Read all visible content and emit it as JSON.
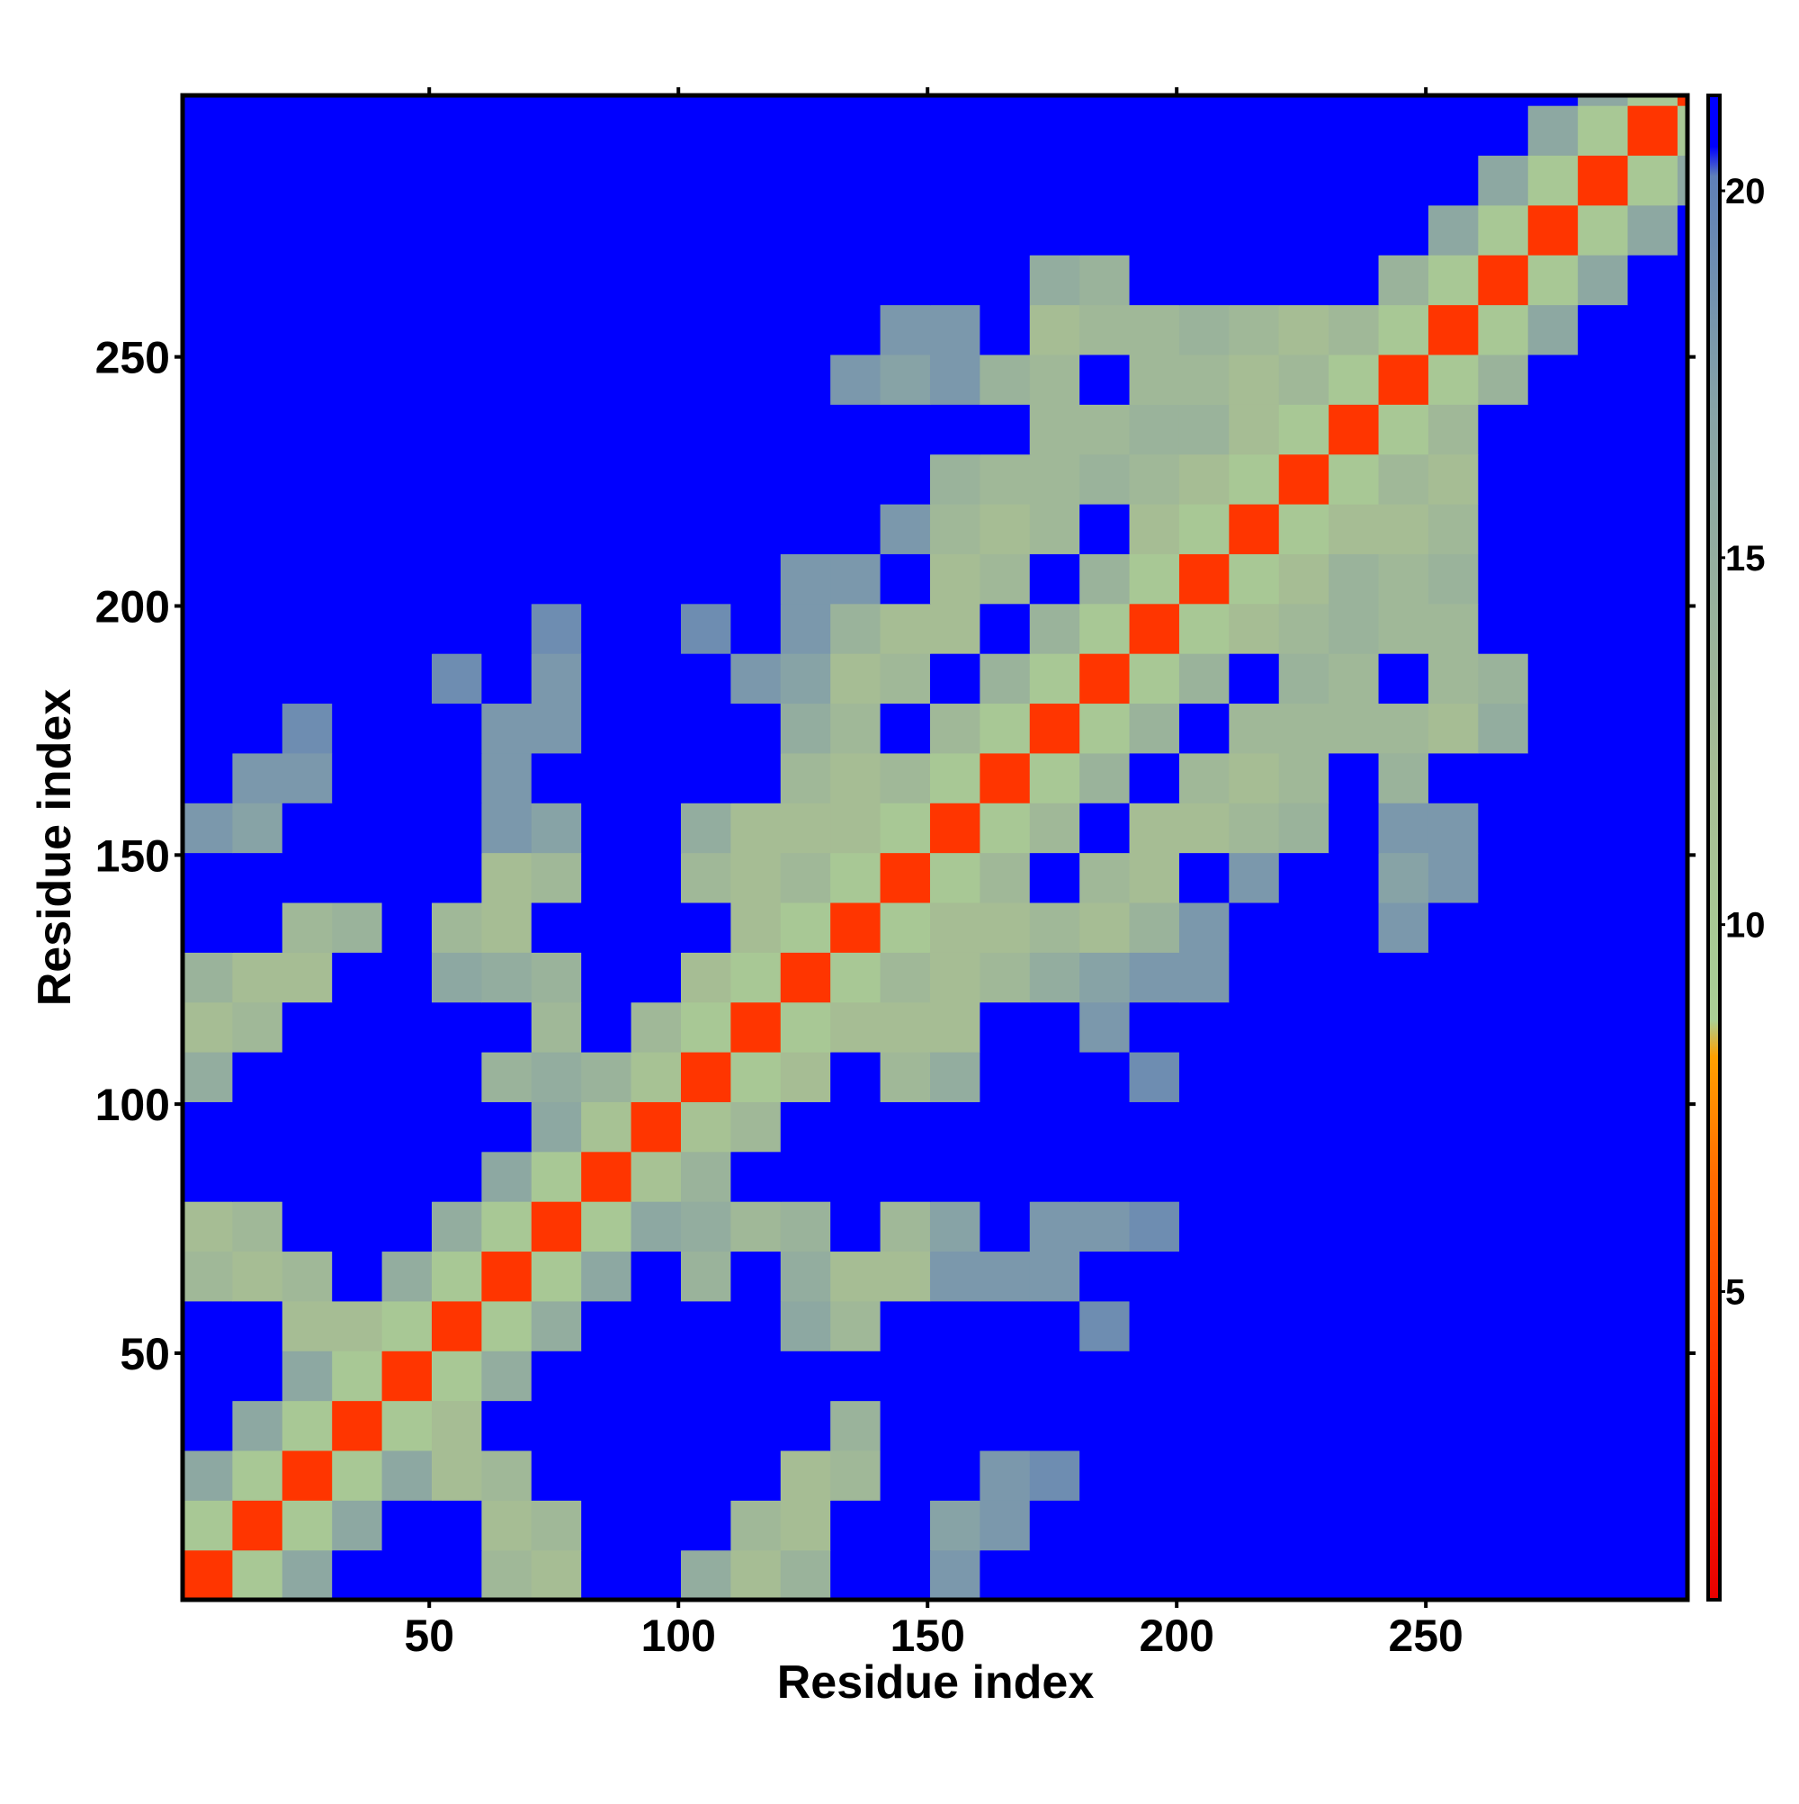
{
  "chart_data": {
    "type": "heatmap",
    "x_label": "Residue index",
    "y_label": "Residue index",
    "xlim": [
      0.5,
      302.5
    ],
    "ylim": [
      0.5,
      302.5
    ],
    "xticks": [
      50,
      100,
      150,
      200,
      250
    ],
    "yticks": [
      50,
      100,
      150,
      200,
      250
    ],
    "x_edges": [
      0.5,
      10.5,
      20.5,
      30.5,
      40.5,
      50.5,
      60.5,
      70.5,
      80.5,
      90.5,
      100.5,
      110.5,
      120.5,
      130.5,
      140.5,
      150.5,
      160.5,
      170.5,
      180.5,
      190.5,
      200.5,
      210.5,
      220.5,
      230.5,
      240.5,
      250.5,
      260.5,
      270.5,
      280.5,
      290.5,
      300.5,
      302.5
    ],
    "y_edges": [
      0.5,
      10.5,
      20.5,
      30.5,
      40.5,
      50.5,
      60.5,
      70.5,
      80.5,
      90.5,
      100.5,
      110.5,
      120.5,
      130.5,
      140.5,
      150.5,
      160.5,
      170.5,
      180.5,
      190.5,
      200.5,
      210.5,
      220.5,
      230.5,
      240.5,
      250.5,
      260.5,
      270.5,
      280.5,
      290.5,
      300.5,
      302.5
    ],
    "zlim": [
      0.8,
      21.3
    ],
    "zticks": [
      5,
      10,
      15,
      20
    ],
    "colorscale": [
      [
        0.8,
        "#e80000"
      ],
      [
        3.5,
        "#ff2a00"
      ],
      [
        6.5,
        "#ff6a00"
      ],
      [
        8.2,
        "#ffa000"
      ],
      [
        8.7,
        "#a9cf95"
      ],
      [
        12,
        "#a6bd94"
      ],
      [
        17,
        "#87a3a6"
      ],
      [
        20.2,
        "#5f80b8"
      ],
      [
        20.6,
        "#0000ff"
      ],
      [
        21.3,
        "#0000ff"
      ]
    ],
    "values": [
      [
        4,
        10,
        16,
        21,
        21,
        21,
        13,
        12,
        21,
        21,
        15,
        12,
        14,
        21,
        21,
        18,
        21,
        21,
        21,
        21,
        21,
        21,
        21,
        21,
        21,
        21,
        21,
        21,
        21,
        21,
        21
      ],
      [
        10,
        4,
        10,
        16,
        21,
        21,
        12,
        13,
        21,
        21,
        21,
        13,
        12,
        21,
        21,
        17,
        18,
        21,
        21,
        21,
        21,
        21,
        21,
        21,
        21,
        21,
        21,
        21,
        21,
        21,
        21
      ],
      [
        16,
        10,
        4,
        10,
        16,
        12,
        13,
        21,
        21,
        21,
        21,
        21,
        12,
        13,
        21,
        21,
        18,
        19,
        21,
        21,
        21,
        21,
        21,
        21,
        21,
        21,
        21,
        21,
        21,
        21,
        21
      ],
      [
        21,
        16,
        10,
        4,
        10,
        12,
        21,
        21,
        21,
        21,
        21,
        21,
        21,
        14,
        21,
        21,
        21,
        21,
        21,
        21,
        21,
        21,
        21,
        21,
        21,
        21,
        21,
        21,
        21,
        21,
        21
      ],
      [
        21,
        21,
        16,
        10,
        4,
        10,
        15,
        21,
        21,
        21,
        21,
        21,
        21,
        21,
        21,
        21,
        21,
        21,
        21,
        21,
        21,
        21,
        21,
        21,
        21,
        21,
        21,
        21,
        21,
        21,
        21
      ],
      [
        21,
        21,
        12,
        12,
        10,
        4,
        10,
        15,
        21,
        21,
        21,
        21,
        16,
        13,
        21,
        21,
        21,
        21,
        19,
        21,
        21,
        21,
        21,
        21,
        21,
        21,
        21,
        21,
        21,
        21,
        21
      ],
      [
        13,
        12,
        13,
        21,
        15,
        10,
        4,
        10,
        16,
        21,
        14,
        21,
        15,
        12,
        12,
        18,
        18,
        18,
        21,
        21,
        21,
        21,
        21,
        21,
        21,
        21,
        21,
        21,
        21,
        21,
        21
      ],
      [
        12,
        13,
        21,
        21,
        21,
        15,
        10,
        4,
        10,
        16,
        15,
        13,
        14,
        21,
        13,
        17,
        21,
        18,
        18,
        19,
        21,
        21,
        21,
        21,
        21,
        21,
        21,
        21,
        21,
        21,
        21
      ],
      [
        21,
        21,
        21,
        21,
        21,
        21,
        16,
        10,
        4,
        11,
        14,
        21,
        21,
        21,
        21,
        21,
        21,
        21,
        21,
        21,
        21,
        21,
        21,
        21,
        21,
        21,
        21,
        21,
        21,
        21,
        21
      ],
      [
        21,
        21,
        21,
        21,
        21,
        21,
        21,
        16,
        11,
        4,
        11,
        13,
        21,
        21,
        21,
        21,
        21,
        21,
        21,
        21,
        21,
        21,
        21,
        21,
        21,
        21,
        21,
        21,
        21,
        21,
        21
      ],
      [
        15,
        21,
        21,
        21,
        21,
        21,
        14,
        15,
        14,
        11,
        4,
        10,
        12,
        21,
        13,
        15,
        21,
        21,
        21,
        19,
        21,
        21,
        21,
        21,
        21,
        21,
        21,
        21,
        21,
        21,
        21
      ],
      [
        12,
        13,
        21,
        21,
        21,
        21,
        21,
        13,
        21,
        13,
        10,
        4,
        10,
        12,
        12,
        12,
        21,
        21,
        18,
        21,
        21,
        21,
        21,
        21,
        21,
        21,
        21,
        21,
        21,
        21,
        21
      ],
      [
        14,
        12,
        12,
        21,
        21,
        16,
        15,
        14,
        21,
        21,
        12,
        10,
        4,
        10,
        13,
        12,
        13,
        15,
        17,
        18,
        18,
        21,
        21,
        21,
        21,
        21,
        21,
        21,
        21,
        21,
        21
      ],
      [
        21,
        21,
        13,
        14,
        21,
        13,
        12,
        21,
        21,
        21,
        21,
        12,
        10,
        4,
        10,
        12,
        12,
        13,
        12,
        14,
        18,
        21,
        21,
        21,
        18,
        21,
        21,
        21,
        21,
        21,
        21
      ],
      [
        21,
        21,
        21,
        21,
        21,
        21,
        12,
        13,
        21,
        21,
        13,
        12,
        13,
        10,
        4,
        10,
        13,
        21,
        13,
        12,
        21,
        18,
        21,
        21,
        17,
        18,
        21,
        21,
        21,
        21,
        21
      ],
      [
        18,
        17,
        21,
        21,
        21,
        21,
        18,
        17,
        21,
        21,
        15,
        12,
        12,
        12,
        10,
        4,
        10,
        13,
        21,
        12,
        12,
        13,
        14,
        21,
        18,
        18,
        21,
        21,
        21,
        21,
        21
      ],
      [
        21,
        18,
        18,
        21,
        21,
        21,
        18,
        21,
        21,
        21,
        21,
        21,
        13,
        12,
        13,
        10,
        4,
        10,
        14,
        21,
        13,
        12,
        13,
        21,
        14,
        21,
        21,
        21,
        21,
        21,
        21
      ],
      [
        21,
        21,
        19,
        21,
        21,
        21,
        18,
        18,
        21,
        21,
        21,
        21,
        15,
        13,
        21,
        13,
        10,
        4,
        10,
        14,
        21,
        13,
        13,
        13,
        13,
        12,
        15,
        21,
        21,
        21,
        21
      ],
      [
        21,
        21,
        21,
        21,
        21,
        19,
        21,
        18,
        21,
        21,
        21,
        18,
        17,
        12,
        13,
        21,
        14,
        10,
        4,
        10,
        14,
        21,
        14,
        13,
        21,
        13,
        14,
        21,
        21,
        21,
        21
      ],
      [
        21,
        21,
        21,
        21,
        21,
        21,
        21,
        19,
        21,
        21,
        19,
        21,
        18,
        14,
        12,
        12,
        21,
        14,
        10,
        4,
        10,
        12,
        13,
        14,
        13,
        13,
        21,
        21,
        21,
        21,
        21
      ],
      [
        21,
        21,
        21,
        21,
        21,
        21,
        21,
        21,
        21,
        21,
        21,
        21,
        18,
        18,
        21,
        12,
        13,
        21,
        14,
        10,
        4,
        10,
        12,
        14,
        13,
        14,
        21,
        21,
        21,
        21,
        21
      ],
      [
        21,
        21,
        21,
        21,
        21,
        21,
        21,
        21,
        21,
        21,
        21,
        21,
        21,
        21,
        18,
        13,
        12,
        13,
        21,
        12,
        10,
        4,
        10,
        12,
        12,
        13,
        21,
        21,
        21,
        21,
        21
      ],
      [
        21,
        21,
        21,
        21,
        21,
        21,
        21,
        21,
        21,
        21,
        21,
        21,
        21,
        21,
        21,
        14,
        13,
        13,
        14,
        13,
        12,
        10,
        4,
        10,
        13,
        12,
        21,
        21,
        21,
        21,
        21
      ],
      [
        21,
        21,
        21,
        21,
        21,
        21,
        21,
        21,
        21,
        21,
        21,
        21,
        21,
        21,
        21,
        21,
        21,
        13,
        13,
        14,
        14,
        12,
        10,
        4,
        10,
        13,
        21,
        21,
        21,
        21,
        21
      ],
      [
        21,
        21,
        21,
        21,
        21,
        21,
        21,
        21,
        21,
        21,
        21,
        21,
        21,
        18,
        17,
        18,
        14,
        13,
        21,
        13,
        13,
        12,
        13,
        10,
        4,
        10,
        14,
        21,
        21,
        21,
        21
      ],
      [
        21,
        21,
        21,
        21,
        21,
        21,
        21,
        21,
        21,
        21,
        21,
        21,
        21,
        21,
        18,
        18,
        21,
        12,
        13,
        13,
        14,
        13,
        12,
        13,
        10,
        4,
        10,
        16,
        21,
        21,
        21
      ],
      [
        21,
        21,
        21,
        21,
        21,
        21,
        21,
        21,
        21,
        21,
        21,
        21,
        21,
        21,
        21,
        21,
        21,
        15,
        14,
        21,
        21,
        21,
        21,
        21,
        14,
        10,
        4,
        10,
        16,
        21,
        21
      ],
      [
        21,
        21,
        21,
        21,
        21,
        21,
        21,
        21,
        21,
        21,
        21,
        21,
        21,
        21,
        21,
        21,
        21,
        21,
        21,
        21,
        21,
        21,
        21,
        21,
        21,
        16,
        10,
        4,
        10,
        16,
        21
      ],
      [
        21,
        21,
        21,
        21,
        21,
        21,
        21,
        21,
        21,
        21,
        21,
        21,
        21,
        21,
        21,
        21,
        21,
        21,
        21,
        21,
        21,
        21,
        21,
        21,
        21,
        21,
        16,
        10,
        4,
        10,
        16
      ],
      [
        21,
        21,
        21,
        21,
        21,
        21,
        21,
        21,
        21,
        21,
        21,
        21,
        21,
        21,
        21,
        21,
        21,
        21,
        21,
        21,
        21,
        21,
        21,
        21,
        21,
        21,
        21,
        16,
        10,
        4,
        10
      ],
      [
        21,
        21,
        21,
        21,
        21,
        21,
        21,
        21,
        21,
        21,
        21,
        21,
        21,
        21,
        21,
        21,
        21,
        21,
        21,
        21,
        21,
        21,
        21,
        21,
        21,
        21,
        21,
        21,
        16,
        10,
        4
      ]
    ]
  }
}
